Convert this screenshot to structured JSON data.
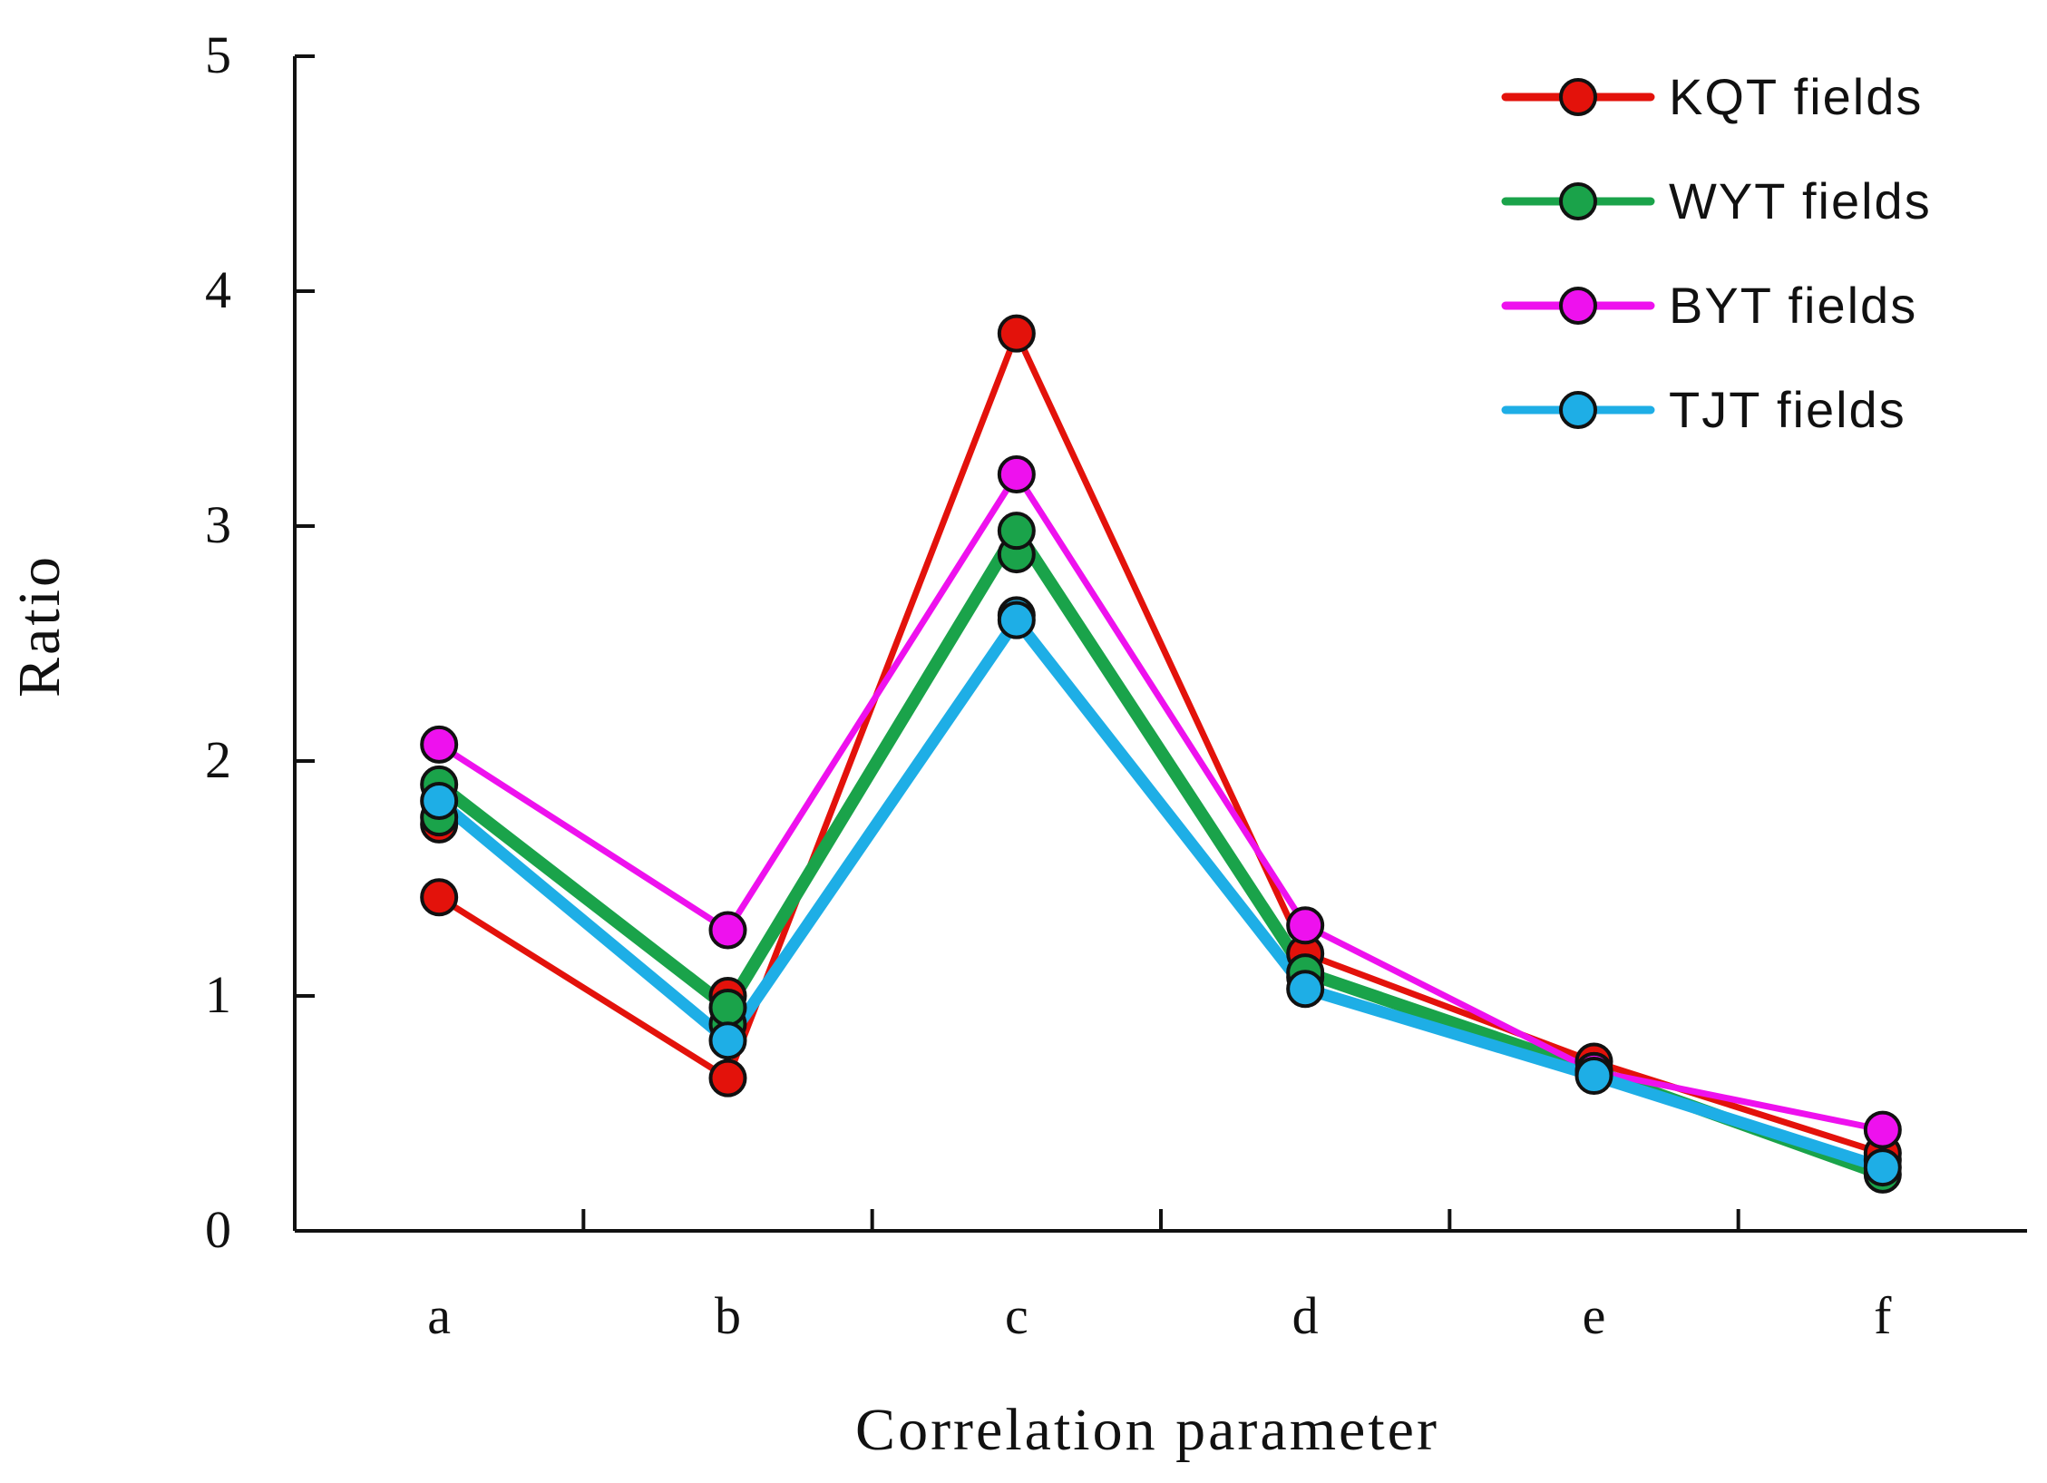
{
  "chart_data": {
    "type": "line",
    "title": "",
    "xlabel": "Correlation parameter",
    "ylabel": "Ratio",
    "categories": [
      "a",
      "b",
      "c",
      "d",
      "e",
      "f"
    ],
    "ylim": [
      0,
      5
    ],
    "yticks": [
      "0",
      "1",
      "2",
      "3",
      "4",
      "5"
    ],
    "grid": false,
    "legend_position": "top-right",
    "series": [
      {
        "name": "KQT  fields",
        "color": "#e3120b",
        "values": [
          1.42,
          0.65,
          3.82,
          1.18,
          0.72,
          0.33
        ],
        "extra_points": [
          {
            "category": "a",
            "value": 1.73
          },
          {
            "category": "b",
            "value": 1.0
          }
        ]
      },
      {
        "name": "WYT  fields",
        "color": "#1aa34a",
        "values": [
          1.9,
          0.95,
          2.98,
          1.1,
          0.68,
          0.24
        ],
        "extra_points": [
          {
            "category": "a",
            "value": 1.76
          },
          {
            "category": "b",
            "value": 0.88
          },
          {
            "category": "c",
            "value": 2.88
          }
        ]
      },
      {
        "name": "BYT  fields",
        "color": "#ee11ee",
        "values": [
          2.07,
          1.28,
          3.22,
          1.3,
          0.68,
          0.43
        ],
        "extra_points": []
      },
      {
        "name": "TJT  fields",
        "color": "#1eaee6",
        "values": [
          1.83,
          0.81,
          2.6,
          1.03,
          0.66,
          0.27
        ],
        "extra_points": [
          {
            "category": "c",
            "value": 2.62
          },
          {
            "category": "d",
            "value": 1.08
          },
          {
            "category": "f",
            "value": 0.3
          }
        ]
      }
    ]
  }
}
